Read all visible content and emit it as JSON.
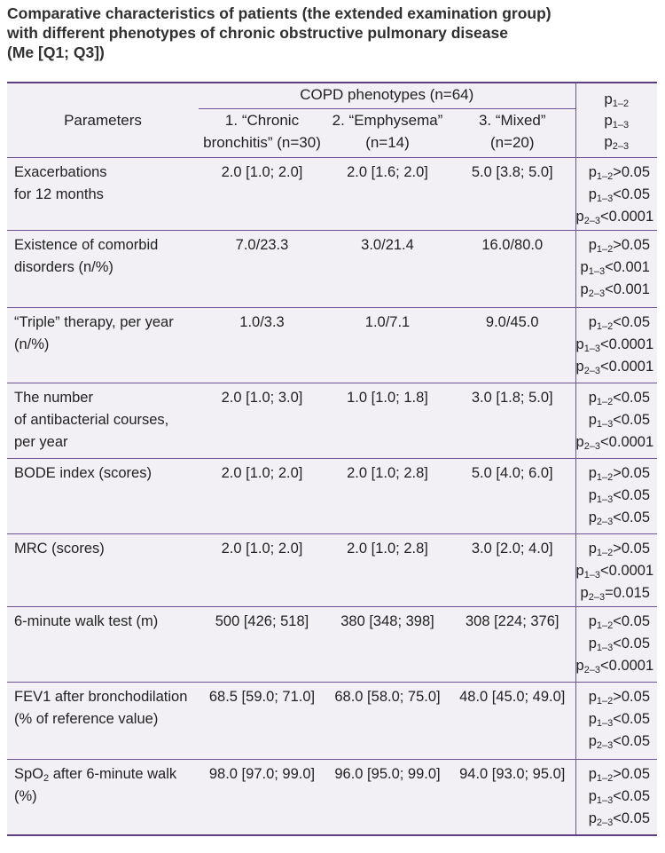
{
  "caption": {
    "line1": "Comparative characteristics of patients (the extended examination group)",
    "line2": "with different phenotypes of chronic obstructive pulmonary disease",
    "line3": "(Me [Q1; Q3])"
  },
  "header": {
    "parameters": "Parameters",
    "group": "COPD phenotypes (n=64)",
    "col1_l1": "1. “Chronic",
    "col1_l2": "bronchitis” (n=30)",
    "col2_l1": "2. “Emphysema”",
    "col2_l2": "(n=14)",
    "col3_l1": "3. “Mixed”",
    "col3_l2": "(n=20)",
    "p1_base": "p",
    "p1_sub": "1–2",
    "p2_base": "p",
    "p2_sub": "1–3",
    "p3_base": "p",
    "p3_sub": "2–3"
  },
  "rows": [
    {
      "param_l1": "Exacerbations",
      "param_l2": "for 12 months",
      "param_l3": "",
      "v1": "2.0 [1.0; 2.0]",
      "v2": "2.0 [1.6; 2.0]",
      "v3": "5.0 [3.8; 5.0]",
      "p": [
        {
          "base": "p",
          "sub": "1–2",
          "val": ">0.05"
        },
        {
          "base": "p",
          "sub": "1–3",
          "val": "<0.05"
        },
        {
          "base": "p",
          "sub": "2–3",
          "val": "<0.0001"
        }
      ]
    },
    {
      "param_l1": "Existence of comorbid",
      "param_l2": "disorders (n/%)",
      "param_l3": "",
      "v1": "7.0/23.3",
      "v2": "3.0/21.4",
      "v3": "16.0/80.0",
      "p": [
        {
          "base": "p",
          "sub": "1–2",
          "val": ">0.05"
        },
        {
          "base": "p",
          "sub": "1–3",
          "val": "<0.001"
        },
        {
          "base": "p",
          "sub": "2–3",
          "val": "<0.001"
        }
      ]
    },
    {
      "param_l1": "“Triple” therapy, per year",
      "param_l2": "(n/%)",
      "param_l3": "",
      "v1": "1.0/3.3",
      "v2": "1.0/7.1",
      "v3": "9.0/45.0",
      "p": [
        {
          "base": "p",
          "sub": "1–2",
          "val": "<0.05"
        },
        {
          "base": "p",
          "sub": "1–3",
          "val": "<0.0001"
        },
        {
          "base": "p",
          "sub": "2–3",
          "val": "<0.0001"
        }
      ]
    },
    {
      "param_l1": "The number",
      "param_l2": "of antibacterial courses,",
      "param_l3": "per year",
      "v1": "2.0 [1.0; 3.0]",
      "v2": "1.0 [1.0; 1.8]",
      "v3": "3.0 [1.8; 5.0]",
      "p": [
        {
          "base": "p",
          "sub": "1–2",
          "val": "<0.05"
        },
        {
          "base": "p",
          "sub": "1–3",
          "val": "<0.05"
        },
        {
          "base": "p",
          "sub": "2–3",
          "val": "<0.0001"
        }
      ]
    },
    {
      "param_l1": "BODE index (scores)",
      "param_l2": "",
      "param_l3": "",
      "v1": "2.0 [1.0; 2.0]",
      "v2": "2.0 [1.0; 2.8]",
      "v3": "5.0 [4.0; 6.0]",
      "p": [
        {
          "base": "p",
          "sub": "1–2",
          "val": ">0.05"
        },
        {
          "base": "p",
          "sub": "1–3",
          "val": "<0.05"
        },
        {
          "base": "p",
          "sub": "2–3",
          "val": "<0.05"
        }
      ]
    },
    {
      "param_l1": "MRC (scores)",
      "param_l2": "",
      "param_l3": "",
      "v1": "2.0 [1.0; 2.0]",
      "v2": "2.0 [1.0; 2.8]",
      "v3": "3.0 [2.0; 4.0]",
      "p": [
        {
          "base": "p",
          "sub": "1–2",
          "val": ">0.05"
        },
        {
          "base": "p",
          "sub": "1–3",
          "val": "<0.0001"
        },
        {
          "base": "p",
          "sub": "2–3",
          "val": "=0.015"
        }
      ]
    },
    {
      "param_l1": "6-minute walk test (m)",
      "param_l2": "",
      "param_l3": "",
      "v1": "500 [426; 518]",
      "v2": "380 [348; 398]",
      "v3": "308 [224; 376]",
      "p": [
        {
          "base": "p",
          "sub": "1–2",
          "val": "<0.05"
        },
        {
          "base": "p",
          "sub": "1–3",
          "val": "<0.05"
        },
        {
          "base": "p",
          "sub": "2–3",
          "val": "<0.0001"
        }
      ]
    },
    {
      "param_l1": "FEV1 after bronchodilation",
      "param_l2": "(% of reference value)",
      "param_l3": "",
      "v1": "68.5 [59.0; 71.0]",
      "v2": "68.0 [58.0; 75.0]",
      "v3": "48.0 [45.0; 49.0]",
      "p": [
        {
          "base": "p",
          "sub": "1–2",
          "val": ">0.05"
        },
        {
          "base": "p",
          "sub": "1–3",
          "val": "<0.05"
        },
        {
          "base": "p",
          "sub": "2–3",
          "val": "<0.05"
        }
      ]
    },
    {
      "param_l1": "SpO",
      "param_l1_sub": "2",
      "param_l1_tail": " after 6-minute walk",
      "param_l2": "(%)",
      "param_l3": "",
      "v1": "98.0 [97.0; 99.0]",
      "v2": "96.0 [95.0; 99.0]",
      "v3": "94.0 [93.0; 95.0]",
      "p": [
        {
          "base": "p",
          "sub": "1–2",
          "val": ">0.05"
        },
        {
          "base": "p",
          "sub": "1–3",
          "val": "<0.05"
        },
        {
          "base": "p",
          "sub": "2–3",
          "val": "<0.05"
        }
      ]
    }
  ]
}
